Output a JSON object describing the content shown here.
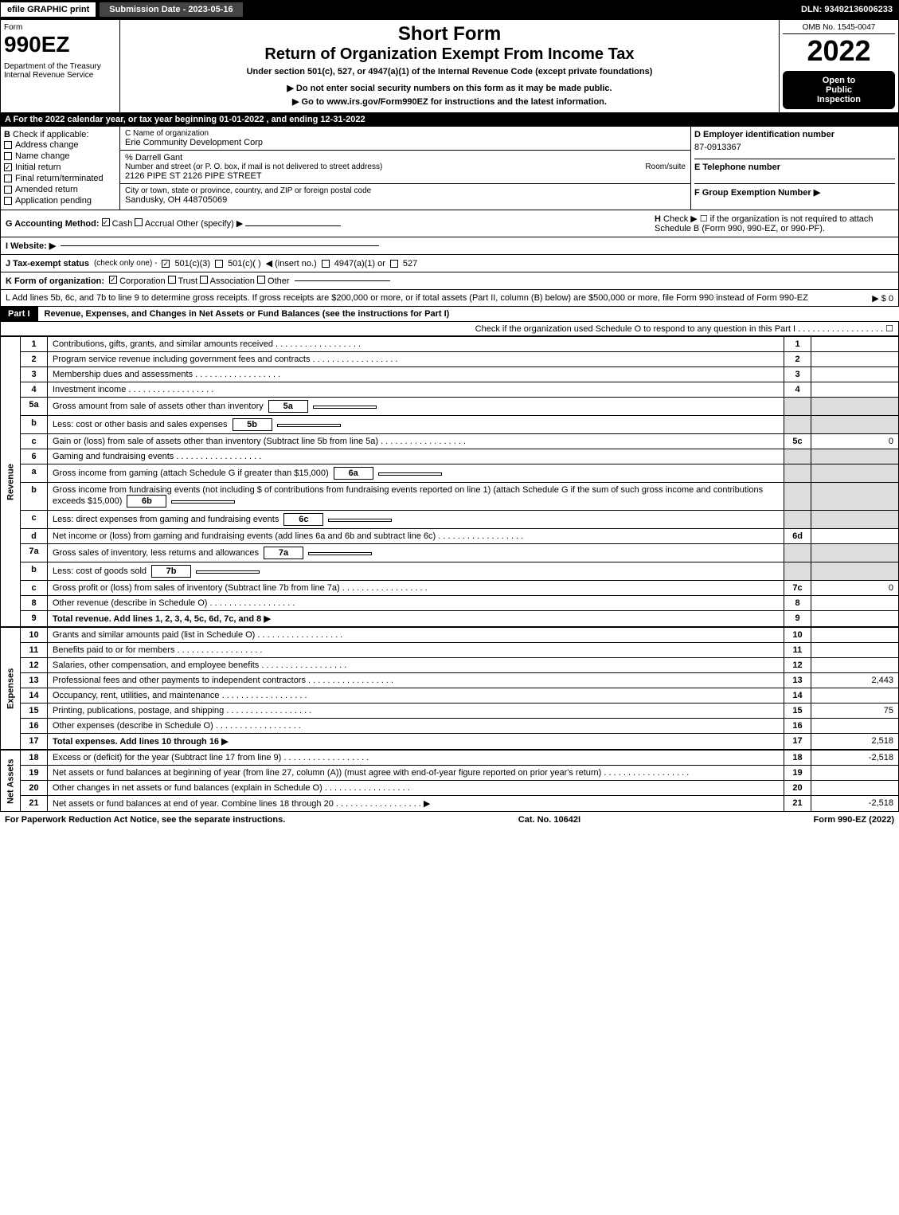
{
  "topbar": {
    "efile": "efile GRAPHIC print",
    "submission": "Submission Date - 2023-05-16",
    "dln": "DLN: 93492136006233"
  },
  "header": {
    "form_label": "Form",
    "form_no": "990EZ",
    "dept": "Department of the Treasury",
    "irs": "Internal Revenue Service",
    "short_form": "Short Form",
    "title": "Return of Organization Exempt From Income Tax",
    "subtitle": "Under section 501(c), 527, or 4947(a)(1) of the Internal Revenue Code (except private foundations)",
    "note1": "▶ Do not enter social security numbers on this form as it may be made public.",
    "note2": "▶ Go to www.irs.gov/Form990EZ for instructions and the latest information.",
    "omb": "OMB No. 1545-0047",
    "year": "2022",
    "badge1": "Open to",
    "badge2": "Public",
    "badge3": "Inspection"
  },
  "section_a": "A  For the 2022 calendar year, or tax year beginning 01-01-2022 , and ending 12-31-2022",
  "col_b": {
    "header": "B",
    "label": "Check if applicable:",
    "opts": [
      "Address change",
      "Name change",
      "Initial return",
      "Final return/terminated",
      "Amended return",
      "Application pending"
    ],
    "checked_idx": 2
  },
  "col_c": {
    "c_label": "C Name of organization",
    "org": "Erie Community Development Corp",
    "care_of": "% Darrell Gant",
    "street_label": "Number and street (or P. O. box, if mail is not delivered to street address)",
    "room_label": "Room/suite",
    "street": "2126 PIPE ST 2126 PIPE STREET",
    "city_label": "City or town, state or province, country, and ZIP or foreign postal code",
    "city": "Sandusky, OH  448705069"
  },
  "col_d": {
    "d_label": "D Employer identification number",
    "ein": "87-0913367",
    "e_label": "E Telephone number",
    "f_label": "F Group Exemption Number",
    "f_arrow": "▶"
  },
  "row_g": {
    "label": "G Accounting Method:",
    "cash": "Cash",
    "accrual": "Accrual",
    "other": "Other (specify) ▶"
  },
  "row_h": {
    "label": "H",
    "text": "Check ▶ ☐ if the organization is not required to attach Schedule B (Form 990, 990-EZ, or 990-PF)."
  },
  "row_i": {
    "label": "I Website: ▶"
  },
  "row_j": {
    "label": "J Tax-exempt status",
    "sub": "(check only one) -",
    "opt1": "501(c)(3)",
    "opt2": "501(c)( )",
    "insert": "◀ (insert no.)",
    "opt3": "4947(a)(1) or",
    "opt4": "527"
  },
  "row_k": {
    "label": "K Form of organization:",
    "opts": [
      "Corporation",
      "Trust",
      "Association",
      "Other"
    ]
  },
  "row_l": {
    "text": "L Add lines 5b, 6c, and 7b to line 9 to determine gross receipts. If gross receipts are $200,000 or more, or if total assets (Part II, column (B) below) are $500,000 or more, file Form 990 instead of Form 990-EZ",
    "arrow": "▶ $ 0"
  },
  "part1": {
    "tab": "Part I",
    "title": "Revenue, Expenses, and Changes in Net Assets or Fund Balances (see the instructions for Part I)",
    "check_note": "Check if the organization used Schedule O to respond to any question in this Part I",
    "check_val": "☐"
  },
  "sections": {
    "revenue": "Revenue",
    "expenses": "Expenses",
    "netassets": "Net Assets"
  },
  "lines": [
    {
      "no": "1",
      "text": "Contributions, gifts, grants, and similar amounts received",
      "box": "1",
      "amt": ""
    },
    {
      "no": "2",
      "text": "Program service revenue including government fees and contracts",
      "box": "2",
      "amt": ""
    },
    {
      "no": "3",
      "text": "Membership dues and assessments",
      "box": "3",
      "amt": ""
    },
    {
      "no": "4",
      "text": "Investment income",
      "box": "4",
      "amt": ""
    },
    {
      "no": "5a",
      "text": "Gross amount from sale of assets other than inventory",
      "sub": "5a",
      "box": "",
      "amt": "",
      "shade": true
    },
    {
      "no": "b",
      "text": "Less: cost or other basis and sales expenses",
      "sub": "5b",
      "box": "",
      "amt": "",
      "shade": true
    },
    {
      "no": "c",
      "text": "Gain or (loss) from sale of assets other than inventory (Subtract line 5b from line 5a)",
      "box": "5c",
      "amt": "0"
    },
    {
      "no": "6",
      "text": "Gaming and fundraising events",
      "box": "",
      "amt": "",
      "shade": true
    },
    {
      "no": "a",
      "text": "Gross income from gaming (attach Schedule G if greater than $15,000)",
      "sub": "6a",
      "box": "",
      "amt": "",
      "shade": true
    },
    {
      "no": "b",
      "text": "Gross income from fundraising events (not including $             of contributions from fundraising events reported on line 1) (attach Schedule G if the sum of such gross income and contributions exceeds $15,000)",
      "sub": "6b",
      "box": "",
      "amt": "",
      "shade": true
    },
    {
      "no": "c",
      "text": "Less: direct expenses from gaming and fundraising events",
      "sub": "6c",
      "box": "",
      "amt": "",
      "shade": true
    },
    {
      "no": "d",
      "text": "Net income or (loss) from gaming and fundraising events (add lines 6a and 6b and subtract line 6c)",
      "box": "6d",
      "amt": ""
    },
    {
      "no": "7a",
      "text": "Gross sales of inventory, less returns and allowances",
      "sub": "7a",
      "box": "",
      "amt": "",
      "shade": true
    },
    {
      "no": "b",
      "text": "Less: cost of goods sold",
      "sub": "7b",
      "box": "",
      "amt": "",
      "shade": true
    },
    {
      "no": "c",
      "text": "Gross profit or (loss) from sales of inventory (Subtract line 7b from line 7a)",
      "box": "7c",
      "amt": "0"
    },
    {
      "no": "8",
      "text": "Other revenue (describe in Schedule O)",
      "box": "8",
      "amt": ""
    },
    {
      "no": "9",
      "text": "Total revenue. Add lines 1, 2, 3, 4, 5c, 6d, 7c, and 8",
      "box": "9",
      "amt": "",
      "bold": true,
      "arrow": true
    }
  ],
  "exp_lines": [
    {
      "no": "10",
      "text": "Grants and similar amounts paid (list in Schedule O)",
      "box": "10",
      "amt": ""
    },
    {
      "no": "11",
      "text": "Benefits paid to or for members",
      "box": "11",
      "amt": ""
    },
    {
      "no": "12",
      "text": "Salaries, other compensation, and employee benefits",
      "box": "12",
      "amt": ""
    },
    {
      "no": "13",
      "text": "Professional fees and other payments to independent contractors",
      "box": "13",
      "amt": "2,443"
    },
    {
      "no": "14",
      "text": "Occupancy, rent, utilities, and maintenance",
      "box": "14",
      "amt": ""
    },
    {
      "no": "15",
      "text": "Printing, publications, postage, and shipping",
      "box": "15",
      "amt": "75"
    },
    {
      "no": "16",
      "text": "Other expenses (describe in Schedule O)",
      "box": "16",
      "amt": ""
    },
    {
      "no": "17",
      "text": "Total expenses. Add lines 10 through 16",
      "box": "17",
      "amt": "2,518",
      "bold": true,
      "arrow": true
    }
  ],
  "net_lines": [
    {
      "no": "18",
      "text": "Excess or (deficit) for the year (Subtract line 17 from line 9)",
      "box": "18",
      "amt": "-2,518"
    },
    {
      "no": "19",
      "text": "Net assets or fund balances at beginning of year (from line 27, column (A)) (must agree with end-of-year figure reported on prior year's return)",
      "box": "19",
      "amt": ""
    },
    {
      "no": "20",
      "text": "Other changes in net assets or fund balances (explain in Schedule O)",
      "box": "20",
      "amt": ""
    },
    {
      "no": "21",
      "text": "Net assets or fund balances at end of year. Combine lines 18 through 20",
      "box": "21",
      "amt": "-2,518",
      "arrow": true
    }
  ],
  "footer": {
    "left": "For Paperwork Reduction Act Notice, see the separate instructions.",
    "mid": "Cat. No. 10642I",
    "right": "Form 990-EZ (2022)"
  }
}
